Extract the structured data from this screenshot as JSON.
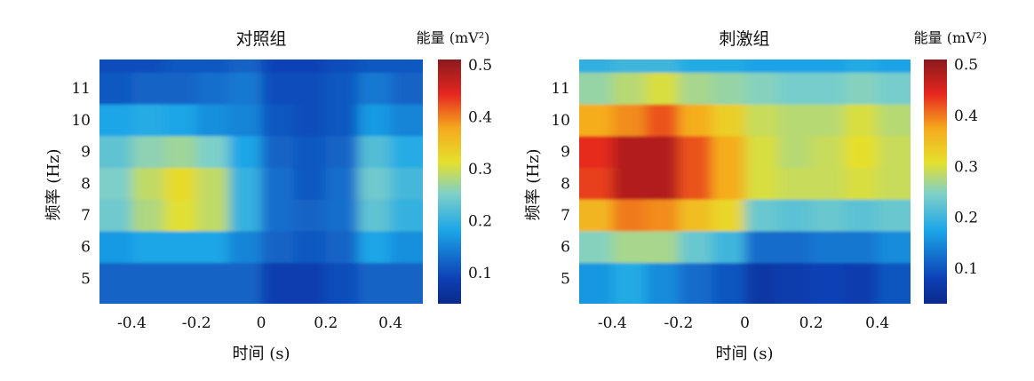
{
  "chart_data": [
    {
      "type": "heatmap",
      "title": "对照组",
      "xlabel": "时间 (s)",
      "ylabel": "频率 (Hz)",
      "xlim": [
        -0.5,
        0.5
      ],
      "ylim": [
        4.2,
        11.9
      ],
      "xticks": [
        -0.4,
        -0.2,
        0,
        0.2,
        0.4
      ],
      "xtick_labels": [
        "-0.4",
        "-0.2",
        "0",
        "0.2",
        "0.4"
      ],
      "yticks": [
        5,
        6,
        7,
        8,
        9,
        10,
        11
      ],
      "ytick_labels": [
        "5",
        "6",
        "7",
        "8",
        "9",
        "10",
        "11"
      ],
      "colorbar": {
        "label": "能量 (mV²)",
        "range": [
          0.04,
          0.51
        ],
        "ticks": [
          0.1,
          0.2,
          0.3,
          0.4,
          0.5
        ],
        "tick_labels": [
          "0.1",
          "0.2",
          "0.3",
          "0.4",
          "0.5"
        ],
        "colormap": "jet"
      },
      "x": [
        -0.45,
        -0.35,
        -0.25,
        -0.15,
        -0.05,
        0.05,
        0.15,
        0.25,
        0.35,
        0.45
      ],
      "rows": [
        {
          "y": 5,
          "values": [
            0.12,
            0.12,
            0.12,
            0.12,
            0.12,
            0.08,
            0.08,
            0.1,
            0.12,
            0.12
          ]
        },
        {
          "y": 6,
          "values": [
            0.17,
            0.18,
            0.18,
            0.18,
            0.15,
            0.12,
            0.11,
            0.12,
            0.18,
            0.16
          ]
        },
        {
          "y": 7,
          "values": [
            0.24,
            0.28,
            0.31,
            0.29,
            0.2,
            0.13,
            0.12,
            0.13,
            0.23,
            0.2
          ]
        },
        {
          "y": 8,
          "values": [
            0.25,
            0.29,
            0.32,
            0.29,
            0.2,
            0.13,
            0.11,
            0.13,
            0.24,
            0.21
          ]
        },
        {
          "y": 9,
          "values": [
            0.23,
            0.26,
            0.27,
            0.25,
            0.18,
            0.12,
            0.11,
            0.12,
            0.22,
            0.19
          ]
        },
        {
          "y": 10,
          "values": [
            0.18,
            0.19,
            0.18,
            0.16,
            0.15,
            0.11,
            0.1,
            0.11,
            0.17,
            0.15
          ]
        },
        {
          "y": 11,
          "values": [
            0.11,
            0.12,
            0.12,
            0.13,
            0.14,
            0.1,
            0.1,
            0.11,
            0.14,
            0.12
          ]
        },
        {
          "y": 12,
          "values": [
            0.1,
            0.1,
            0.11,
            0.11,
            0.12,
            0.09,
            0.09,
            0.1,
            0.11,
            0.11
          ]
        }
      ]
    },
    {
      "type": "heatmap",
      "title": "刺激组",
      "xlabel": "时间 (s)",
      "ylabel": "频率 (Hz)",
      "xlim": [
        -0.5,
        0.5
      ],
      "ylim": [
        4.2,
        11.9
      ],
      "xticks": [
        -0.4,
        -0.2,
        0,
        0.2,
        0.4
      ],
      "xtick_labels": [
        "-0.4",
        "-0.2",
        "0",
        "0.2",
        "0.4"
      ],
      "yticks": [
        5,
        6,
        7,
        8,
        9,
        10,
        11
      ],
      "ytick_labels": [
        "5",
        "6",
        "7",
        "8",
        "9",
        "10",
        "11"
      ],
      "colorbar": {
        "label": "能量 (mV²)",
        "range": [
          0.03,
          0.51
        ],
        "ticks": [
          0.1,
          0.2,
          0.3,
          0.4,
          0.5
        ],
        "tick_labels": [
          "0.1",
          "0.2",
          "0.3",
          "0.4",
          "0.5"
        ],
        "colormap": "jet"
      },
      "x": [
        -0.45,
        -0.35,
        -0.25,
        -0.15,
        -0.05,
        0.05,
        0.15,
        0.25,
        0.35,
        0.45
      ],
      "rows": [
        {
          "y": 5,
          "values": [
            0.16,
            0.18,
            0.15,
            0.12,
            0.1,
            0.06,
            0.07,
            0.08,
            0.07,
            0.1
          ]
        },
        {
          "y": 6,
          "values": [
            0.25,
            0.27,
            0.27,
            0.23,
            0.2,
            0.12,
            0.12,
            0.13,
            0.13,
            0.15
          ]
        },
        {
          "y": 7,
          "values": [
            0.36,
            0.4,
            0.39,
            0.35,
            0.32,
            0.23,
            0.22,
            0.23,
            0.22,
            0.23
          ]
        },
        {
          "y": 8,
          "values": [
            0.43,
            0.48,
            0.48,
            0.42,
            0.37,
            0.3,
            0.29,
            0.29,
            0.3,
            0.29
          ]
        },
        {
          "y": 9,
          "values": [
            0.44,
            0.48,
            0.48,
            0.42,
            0.37,
            0.3,
            0.28,
            0.29,
            0.31,
            0.29
          ]
        },
        {
          "y": 10,
          "values": [
            0.37,
            0.39,
            0.42,
            0.37,
            0.33,
            0.29,
            0.28,
            0.28,
            0.3,
            0.28
          ]
        },
        {
          "y": 11,
          "values": [
            0.26,
            0.28,
            0.3,
            0.27,
            0.26,
            0.25,
            0.24,
            0.24,
            0.25,
            0.24
          ]
        },
        {
          "y": 12,
          "values": [
            0.19,
            0.2,
            0.2,
            0.18,
            0.18,
            0.17,
            0.17,
            0.17,
            0.18,
            0.17
          ]
        }
      ]
    }
  ]
}
